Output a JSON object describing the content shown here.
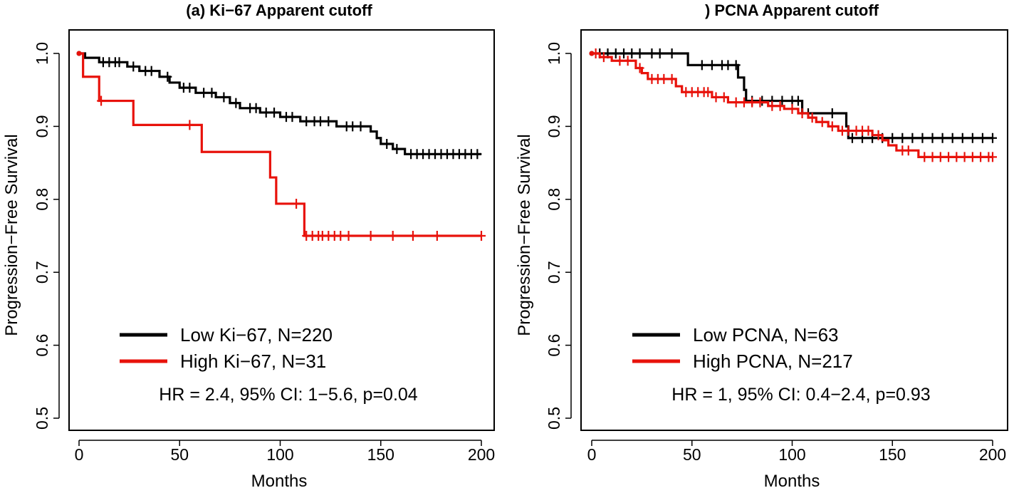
{
  "chart_data": [
    {
      "type": "line",
      "subtype": "kaplan-meier",
      "title": "(a) Ki−67 Apparent cutoff",
      "xlabel": "Months",
      "ylabel": "Progression−Free Survival",
      "xlim": [
        0,
        200
      ],
      "ylim": [
        0.5,
        1.0
      ],
      "xticks": [
        0,
        50,
        100,
        150,
        200
      ],
      "yticks": [
        0.5,
        0.6,
        0.7,
        0.8,
        0.9,
        1.0
      ],
      "ytick_labels": [
        "0.5",
        "0.6",
        "0.7",
        "0.8",
        "0.9",
        "1.0"
      ],
      "legend_position": "bottom-center",
      "annotation": "HR = 2.4, 95% CI: 1−5.6, p=0.04",
      "series": [
        {
          "name": "Low Ki−67, N=220",
          "color": "#000000",
          "steps": [
            [
              0,
              1.0
            ],
            [
              3,
              0.994
            ],
            [
              10,
              0.988
            ],
            [
              24,
              0.982
            ],
            [
              30,
              0.976
            ],
            [
              40,
              0.968
            ],
            [
              45,
              0.96
            ],
            [
              50,
              0.953
            ],
            [
              58,
              0.946
            ],
            [
              68,
              0.94
            ],
            [
              75,
              0.932
            ],
            [
              80,
              0.925
            ],
            [
              90,
              0.919
            ],
            [
              100,
              0.913
            ],
            [
              110,
              0.907
            ],
            [
              128,
              0.9
            ],
            [
              145,
              0.893
            ],
            [
              148,
              0.884
            ],
            [
              150,
              0.876
            ],
            [
              156,
              0.869
            ],
            [
              162,
              0.862
            ],
            [
              200,
              0.862
            ]
          ],
          "censored_x": [
            12,
            15,
            18,
            20,
            27,
            33,
            36,
            44,
            52,
            55,
            62,
            66,
            72,
            78,
            85,
            88,
            93,
            97,
            103,
            106,
            113,
            117,
            120,
            124,
            133,
            136,
            140,
            153,
            158,
            165,
            168,
            171,
            174,
            177,
            180,
            183,
            186,
            189,
            192,
            195,
            198
          ]
        },
        {
          "name": "High Ki−67, N=31",
          "color": "#e8120b",
          "steps": [
            [
              0,
              1.0
            ],
            [
              2,
              0.968
            ],
            [
              10,
              0.935
            ],
            [
              27,
              0.902
            ],
            [
              61,
              0.865
            ],
            [
              95,
              0.83
            ],
            [
              98,
              0.794
            ],
            [
              112,
              0.75
            ],
            [
              200,
              0.75
            ]
          ],
          "censored_x": [
            11,
            55,
            108,
            113,
            116,
            119,
            121,
            124,
            127,
            130,
            134,
            145,
            156,
            166,
            178,
            200
          ]
        }
      ]
    },
    {
      "type": "line",
      "subtype": "kaplan-meier",
      "title": ") PCNA Apparent cutoff",
      "xlabel": "Months",
      "ylabel": "Progression−Free Survival",
      "xlim": [
        0,
        200
      ],
      "ylim": [
        0.5,
        1.0
      ],
      "xticks": [
        0,
        50,
        100,
        150,
        200
      ],
      "yticks": [
        0.5,
        0.6,
        0.7,
        0.8,
        0.9,
        1.0
      ],
      "ytick_labels": [
        "0.5",
        "0.6",
        "0.7",
        "0.8",
        "0.9",
        "1.0"
      ],
      "legend_position": "bottom-center",
      "annotation": "HR = 1, 95% CI: 0.4−2.4, p=0.93",
      "series": [
        {
          "name": "Low PCNA, N=63",
          "color": "#000000",
          "steps": [
            [
              0,
              1.0
            ],
            [
              48,
              0.984
            ],
            [
              73,
              0.967
            ],
            [
              76,
              0.95
            ],
            [
              77,
              0.935
            ],
            [
              105,
              0.918
            ],
            [
              127,
              0.9
            ],
            [
              128,
              0.884
            ],
            [
              200,
              0.884
            ]
          ],
          "censored_x": [
            4,
            8,
            12,
            16,
            20,
            24,
            30,
            34,
            40,
            55,
            60,
            65,
            68,
            72,
            80,
            85,
            90,
            95,
            100,
            103,
            108,
            120,
            130,
            135,
            140,
            145,
            150,
            155,
            160,
            165,
            170,
            175,
            180,
            185,
            190,
            195,
            200
          ]
        },
        {
          "name": "High PCNA, N=217",
          "color": "#e8120b",
          "steps": [
            [
              0,
              1.0
            ],
            [
              4,
              0.995
            ],
            [
              10,
              0.99
            ],
            [
              22,
              0.98
            ],
            [
              25,
              0.973
            ],
            [
              28,
              0.965
            ],
            [
              42,
              0.955
            ],
            [
              45,
              0.947
            ],
            [
              60,
              0.94
            ],
            [
              68,
              0.933
            ],
            [
              88,
              0.928
            ],
            [
              96,
              0.924
            ],
            [
              103,
              0.918
            ],
            [
              108,
              0.912
            ],
            [
              112,
              0.906
            ],
            [
              118,
              0.9
            ],
            [
              123,
              0.894
            ],
            [
              140,
              0.888
            ],
            [
              145,
              0.881
            ],
            [
              148,
              0.874
            ],
            [
              152,
              0.867
            ],
            [
              163,
              0.858
            ],
            [
              200,
              0.858
            ]
          ],
          "censored_x": [
            2,
            6,
            14,
            18,
            24,
            30,
            33,
            36,
            40,
            47,
            50,
            53,
            56,
            58,
            62,
            66,
            72,
            76,
            80,
            84,
            90,
            94,
            100,
            105,
            110,
            115,
            120,
            125,
            128,
            132,
            135,
            138,
            143,
            155,
            158,
            166,
            170,
            174,
            178,
            182,
            186,
            190,
            194,
            198,
            200
          ]
        }
      ]
    }
  ]
}
